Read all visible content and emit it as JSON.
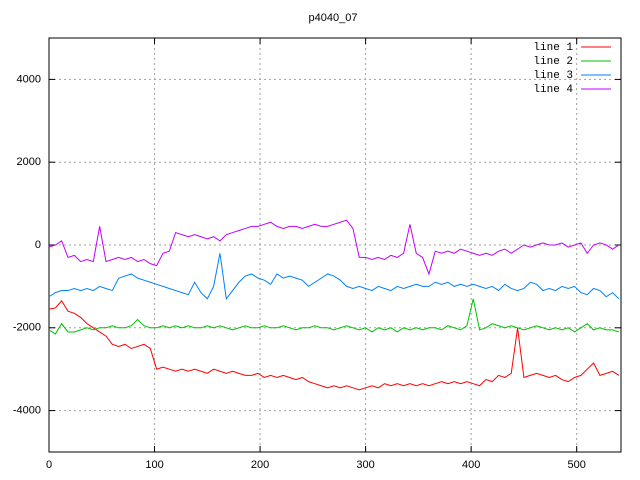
{
  "chart_data": {
    "type": "line",
    "title": "p4040_07",
    "x": [
      0,
      6,
      12,
      18,
      24,
      30,
      36,
      42,
      48,
      54,
      60,
      66,
      72,
      78,
      84,
      90,
      96,
      102,
      108,
      114,
      120,
      126,
      132,
      138,
      144,
      150,
      156,
      162,
      168,
      174,
      180,
      186,
      192,
      198,
      204,
      210,
      216,
      222,
      228,
      234,
      240,
      246,
      252,
      258,
      264,
      270,
      276,
      282,
      288,
      294,
      300,
      306,
      312,
      318,
      324,
      330,
      336,
      342,
      348,
      354,
      360,
      366,
      372,
      378,
      384,
      390,
      396,
      402,
      408,
      414,
      420,
      426,
      432,
      438,
      444,
      450,
      456,
      462,
      468,
      474,
      480,
      486,
      492,
      498,
      504,
      510,
      516,
      522,
      528,
      534,
      540
    ],
    "series": [
      {
        "name": "line 1",
        "color": "#ff0000",
        "values": [
          -1550,
          -1520,
          -1350,
          -1600,
          -1650,
          -1750,
          -1900,
          -2000,
          -2100,
          -2200,
          -2400,
          -2450,
          -2400,
          -2500,
          -2450,
          -2400,
          -2500,
          -3000,
          -2950,
          -3000,
          -3050,
          -3000,
          -3050,
          -3000,
          -3050,
          -3100,
          -3000,
          -3050,
          -3100,
          -3050,
          -3100,
          -3150,
          -3150,
          -3100,
          -3200,
          -3150,
          -3200,
          -3150,
          -3200,
          -3250,
          -3200,
          -3300,
          -3350,
          -3400,
          -3450,
          -3400,
          -3450,
          -3400,
          -3450,
          -3500,
          -3450,
          -3400,
          -3450,
          -3350,
          -3400,
          -3350,
          -3400,
          -3350,
          -3400,
          -3350,
          -3400,
          -3350,
          -3300,
          -3350,
          -3300,
          -3350,
          -3300,
          -3350,
          -3400,
          -3250,
          -3300,
          -3150,
          -3200,
          -3100,
          -2000,
          -3200,
          -3150,
          -3100,
          -3150,
          -3200,
          -3150,
          -3250,
          -3300,
          -3200,
          -3150,
          -3000,
          -2850,
          -3150,
          -3100,
          -3050,
          -3150
        ]
      },
      {
        "name": "line 2",
        "color": "#00c000",
        "values": [
          -2050,
          -2150,
          -1900,
          -2100,
          -2100,
          -2050,
          -2000,
          -2050,
          -2000,
          -2000,
          -1950,
          -2000,
          -2000,
          -1950,
          -1800,
          -1950,
          -2000,
          -2000,
          -1950,
          -2000,
          -1950,
          -2000,
          -1950,
          -2000,
          -2000,
          -1950,
          -2000,
          -1950,
          -2000,
          -2050,
          -2000,
          -1950,
          -2000,
          -2000,
          -1950,
          -2000,
          -2000,
          -1950,
          -2000,
          -2050,
          -2000,
          -2000,
          -1950,
          -2000,
          -2000,
          -2050,
          -2000,
          -1950,
          -2000,
          -2050,
          -2000,
          -2100,
          -2000,
          -2050,
          -2000,
          -2100,
          -2000,
          -2050,
          -2000,
          -2050,
          -2000,
          -2000,
          -2050,
          -1950,
          -2000,
          -2050,
          -1950,
          -1300,
          -2050,
          -2000,
          -1900,
          -1950,
          -2000,
          -1950,
          -2000,
          -2050,
          -2000,
          -1950,
          -2000,
          -2050,
          -2000,
          -2050,
          -2000,
          -2100,
          -2000,
          -1900,
          -2050,
          -2000,
          -2050,
          -2050,
          -2100
        ]
      },
      {
        "name": "line 3",
        "color": "#0080ff",
        "values": [
          -1250,
          -1150,
          -1100,
          -1100,
          -1050,
          -1100,
          -1050,
          -1100,
          -1000,
          -1050,
          -1100,
          -800,
          -750,
          -700,
          -800,
          -850,
          -900,
          -950,
          -1000,
          -1050,
          -1100,
          -1150,
          -1200,
          -900,
          -1150,
          -1300,
          -1000,
          -200,
          -1300,
          -1100,
          -900,
          -750,
          -700,
          -800,
          -850,
          -950,
          -700,
          -800,
          -750,
          -800,
          -850,
          -1000,
          -900,
          -800,
          -700,
          -750,
          -850,
          -1000,
          -1050,
          -1000,
          -1050,
          -1100,
          -1000,
          -1050,
          -1100,
          -1000,
          -1050,
          -1000,
          -950,
          -1000,
          -1000,
          -900,
          -950,
          -900,
          -1000,
          -950,
          -1000,
          -950,
          -1000,
          -1050,
          -1000,
          -1100,
          -950,
          -1050,
          -1100,
          -1050,
          -900,
          -950,
          -1100,
          -1050,
          -1100,
          -1000,
          -1050,
          -1000,
          -1150,
          -1200,
          -1050,
          -1100,
          -1250,
          -1150,
          -1300
        ]
      },
      {
        "name": "line 4",
        "color": "#c000ff",
        "values": [
          -50,
          0,
          100,
          -300,
          -250,
          -400,
          -350,
          -400,
          450,
          -400,
          -350,
          -300,
          -350,
          -300,
          -400,
          -350,
          -450,
          -500,
          -200,
          -150,
          300,
          250,
          200,
          250,
          200,
          150,
          200,
          100,
          250,
          300,
          350,
          400,
          450,
          450,
          500,
          550,
          450,
          400,
          450,
          450,
          400,
          450,
          500,
          450,
          450,
          500,
          550,
          600,
          400,
          -300,
          -300,
          -350,
          -300,
          -350,
          -250,
          -300,
          -200,
          500,
          -200,
          -300,
          -700,
          -150,
          -200,
          -150,
          -200,
          -100,
          -150,
          -200,
          -250,
          -200,
          -250,
          -150,
          -100,
          -200,
          -100,
          0,
          -50,
          0,
          50,
          0,
          0,
          50,
          -50,
          0,
          50,
          -200,
          0,
          50,
          0,
          -100,
          0
        ]
      }
    ],
    "xlim": [
      0,
      542
    ],
    "ylim": [
      -5000,
      5000
    ],
    "xticks": [
      0,
      100,
      200,
      300,
      400,
      500
    ],
    "yticks": [
      -4000,
      -2000,
      0,
      2000,
      4000
    ],
    "grid": true,
    "legend": "upper right"
  }
}
